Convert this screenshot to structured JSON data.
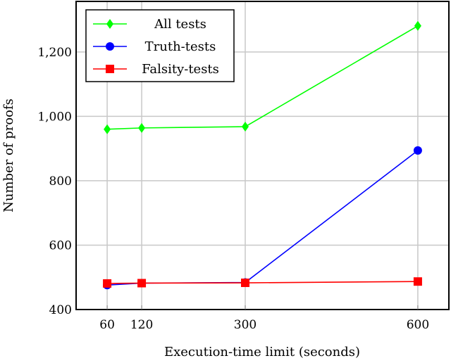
{
  "chart_data": {
    "type": "line",
    "title": "",
    "xlabel": "Execution-time limit (seconds)",
    "ylabel": "Number of proofs",
    "x": [
      60,
      120,
      300,
      600
    ],
    "xticks": [
      "60",
      "120",
      "300",
      "600"
    ],
    "yticks": [
      "400",
      "600",
      "800",
      "1,000",
      "1,200"
    ],
    "ytick_values": [
      400,
      600,
      800,
      1000,
      1200
    ],
    "xlim": [
      6,
      654
    ],
    "ylim": [
      400,
      1357
    ],
    "grid": true,
    "legend_position": "top-left",
    "series": [
      {
        "name": "All tests",
        "values": [
          960,
          964,
          968,
          1281
        ],
        "color": "#00ff00",
        "marker": "diamond"
      },
      {
        "name": "Truth-tests",
        "values": [
          476,
          482,
          484,
          894
        ],
        "color": "#0000ff",
        "marker": "circle"
      },
      {
        "name": "Falsity-tests",
        "values": [
          481,
          482,
          483,
          487
        ],
        "color": "#ff0000",
        "marker": "square"
      }
    ]
  }
}
